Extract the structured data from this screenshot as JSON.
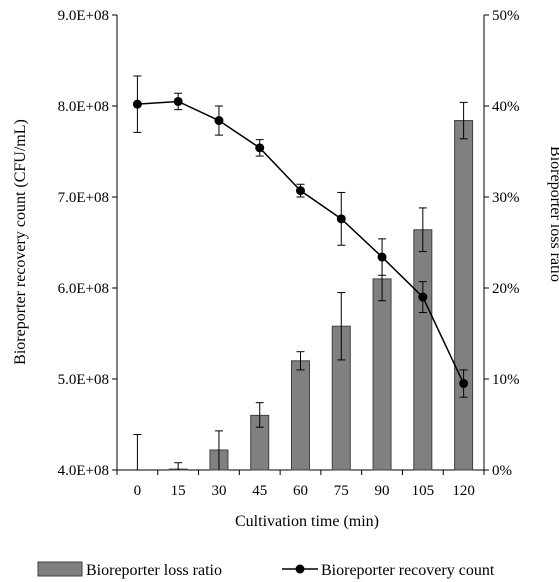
{
  "chart_data": {
    "type": "bar+line",
    "categories": [
      "0",
      "15",
      "30",
      "45",
      "60",
      "75",
      "90",
      "105",
      "120"
    ],
    "xlabel": "Cultivation time (min)",
    "ylabel_left": "Bioreporter recovery count (CFU/mL)",
    "ylabel_right": "Bioreporter loss ratio",
    "left_axis": {
      "ylim": [
        400000000,
        900000000
      ],
      "ticks": [
        "4.0E+08",
        "5.0E+08",
        "6.0E+08",
        "7.0E+08",
        "8.0E+08",
        "9.0E+08"
      ],
      "tick_values": [
        400000000,
        500000000,
        600000000,
        700000000,
        800000000,
        900000000
      ]
    },
    "right_axis": {
      "ylim": [
        0,
        50
      ],
      "ticks": [
        "0%",
        "10%",
        "20%",
        "30%",
        "40%",
        "50%"
      ],
      "tick_values": [
        0,
        10,
        20,
        30,
        40,
        50
      ]
    },
    "series": [
      {
        "name": "Bioreporter loss ratio",
        "kind": "bar",
        "axis": "right",
        "color": "#808080",
        "values": [
          0.0,
          0.1,
          2.2,
          6.0,
          12.0,
          15.8,
          21.0,
          26.4,
          38.4
        ],
        "err_hi": [
          3.9,
          0.7,
          2.1,
          1.4,
          1.0,
          3.7,
          2.4,
          2.4,
          2.0
        ],
        "err_lo": [
          0.0,
          0.3,
          2.2,
          1.3,
          1.0,
          3.7,
          2.4,
          2.4,
          2.0
        ]
      },
      {
        "name": "Bioreporter recovery count",
        "kind": "line",
        "axis": "left",
        "color": "#000000",
        "values": [
          802000000,
          805000000,
          784000000,
          754000000,
          707000000,
          676000000,
          634000000,
          590000000,
          495000000
        ],
        "err": [
          31000000,
          9000000,
          16000000,
          9000000,
          7000000,
          29000000,
          20000000,
          17000000,
          15000000
        ]
      }
    ],
    "legend_position": "bottom",
    "grid": false
  }
}
